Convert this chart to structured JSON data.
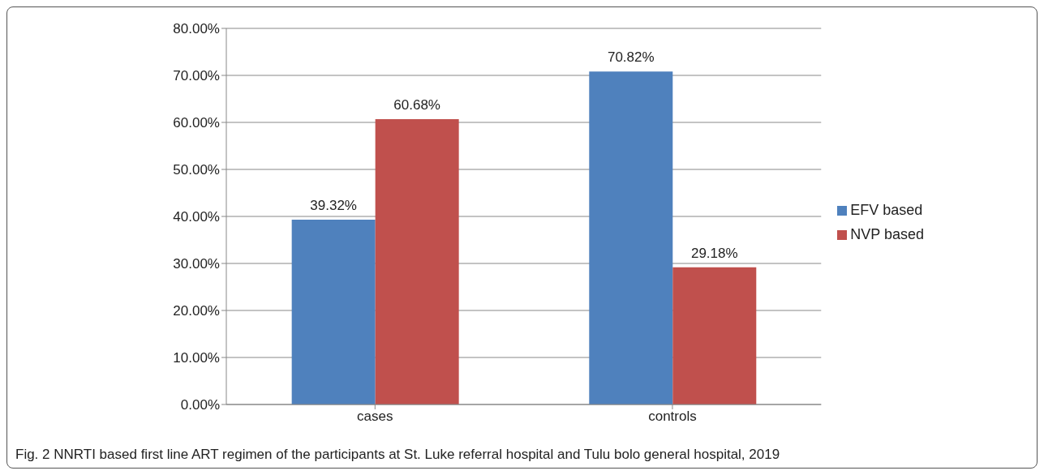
{
  "chart_data": {
    "type": "bar",
    "categories": [
      "cases",
      "controls"
    ],
    "series": [
      {
        "name": "EFV based",
        "color": "#4f81bd",
        "values": [
          39.32,
          70.82
        ],
        "value_labels": [
          "39.32%",
          "70.82%"
        ]
      },
      {
        "name": "NVP based",
        "color": "#c0504d",
        "values": [
          60.68,
          29.18
        ],
        "value_labels": [
          "60.68%",
          "29.18%"
        ]
      }
    ],
    "ylim": [
      0,
      80
    ],
    "yticks": [
      {
        "value": 0,
        "label": "0.00%"
      },
      {
        "value": 10,
        "label": "10.00%"
      },
      {
        "value": 20,
        "label": "20.00%"
      },
      {
        "value": 30,
        "label": "30.00%"
      },
      {
        "value": 40,
        "label": "40.00%"
      },
      {
        "value": 50,
        "label": "50.00%"
      },
      {
        "value": 60,
        "label": "60.00%"
      },
      {
        "value": 70,
        "label": "70.00%"
      },
      {
        "value": 80,
        "label": "80.00%"
      }
    ],
    "grid": "y",
    "legend": "right",
    "annotations": [
      "Fig. 2 NNRTI based first line ART regimen of the participants at St. Luke referral hospital and Tulu bolo general hospital, 2019"
    ]
  }
}
